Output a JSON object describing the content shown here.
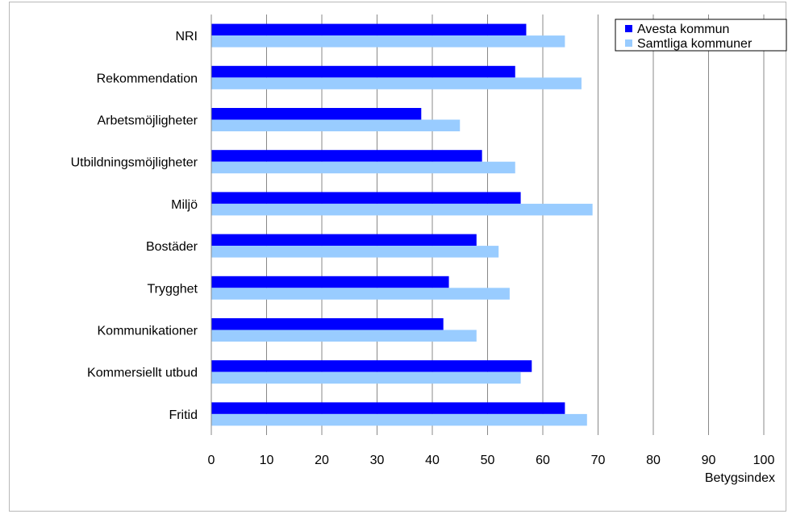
{
  "chart_data": {
    "type": "bar",
    "orientation": "horizontal",
    "categories": [
      "NRI",
      "Rekommendation",
      "Arbetsmöjligheter",
      "Utbildningsmöjligheter",
      "Miljö",
      "Bostäder",
      "Trygghet",
      "Kommunikationer",
      "Kommersiellt utbud",
      "Fritid"
    ],
    "series": [
      {
        "name": "Avesta kommun",
        "color": "#0000ff",
        "values": [
          57,
          55,
          38,
          49,
          56,
          48,
          43,
          42,
          58,
          64
        ]
      },
      {
        "name": "Samtliga kommuner",
        "color": "#99ccff",
        "values": [
          64,
          67,
          45,
          55,
          69,
          52,
          54,
          48,
          56,
          68
        ]
      }
    ],
    "xlabel": "Betygsindex",
    "xlim": [
      0,
      100
    ],
    "xticks": [
      "0",
      "10",
      "20",
      "30",
      "40",
      "50",
      "60",
      "70",
      "80",
      "90",
      "100"
    ],
    "grid": "vertical",
    "legend": "top-right"
  }
}
